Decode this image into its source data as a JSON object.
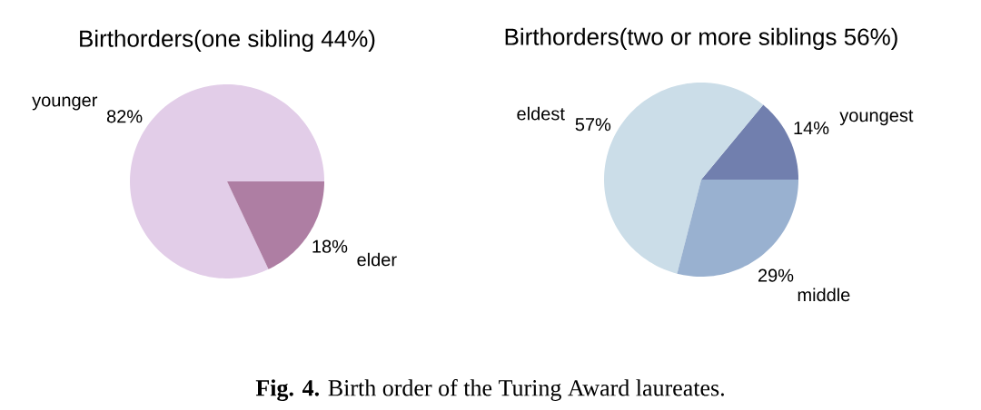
{
  "chart_data": [
    {
      "type": "pie",
      "title": "Birthorders(one sibling 44%)",
      "categories": [
        "younger",
        "elder"
      ],
      "values": [
        82,
        18
      ],
      "colors": [
        "#e2cde8",
        "#ae7ea3"
      ],
      "value_labels": [
        "82%",
        "18%"
      ]
    },
    {
      "type": "pie",
      "title": "Birthorders(two or more siblings 56%)",
      "categories": [
        "youngest",
        "eldest",
        "middle"
      ],
      "values": [
        14,
        57,
        29
      ],
      "colors": [
        "#717fae",
        "#cbdde8",
        "#99b1d0"
      ],
      "value_labels": [
        "14%",
        "57%",
        "29%"
      ],
      "annotations": [
        "**Fig. 4.** Birth order of the Turing Award laureates."
      ]
    }
  ]
}
